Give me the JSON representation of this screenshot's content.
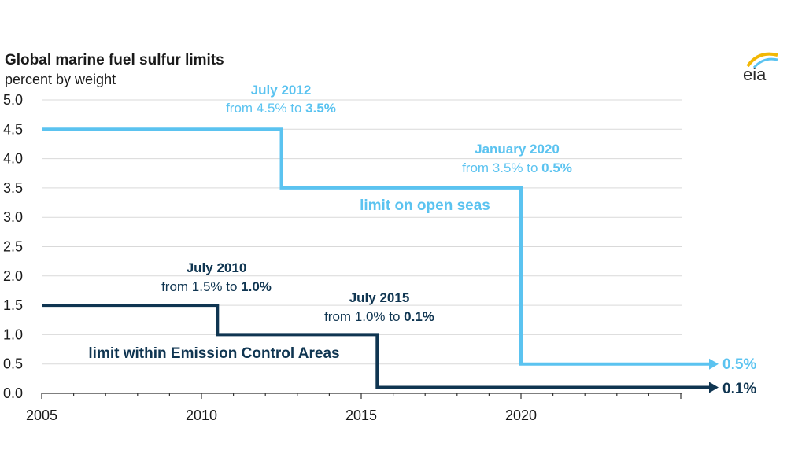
{
  "logo": {
    "text": "eia"
  },
  "colors": {
    "open_seas": "#5bc3f0",
    "eca": "#0f3551",
    "grid": "#d9d9d9",
    "text": "#1a1a1a"
  },
  "chart_data": {
    "type": "line",
    "step": true,
    "title": "Global marine fuel sulfur limits",
    "subtitle": "percent by weight",
    "xlabel": "",
    "ylabel": "percent by weight",
    "xlim": [
      2005,
      2025
    ],
    "ylim": [
      0,
      5.0
    ],
    "x_ticks": [
      2005,
      2010,
      2015,
      2020
    ],
    "x_tick_labels": [
      "2005",
      "2010",
      "2015",
      "2020"
    ],
    "y_ticks": [
      0,
      0.5,
      1.0,
      1.5,
      2.0,
      2.5,
      3.0,
      3.5,
      4.0,
      4.5,
      5.0
    ],
    "y_tick_labels": [
      "0.0",
      "0.5",
      "1.0",
      "1.5",
      "2.0",
      "2.5",
      "3.0",
      "3.5",
      "4.0",
      "4.5",
      "5.0"
    ],
    "grid": true,
    "series": [
      {
        "name": "limit on open seas",
        "label": "limit on open seas",
        "color": "#5bc3f0",
        "x": [
          2005,
          2012.5,
          2012.5,
          2020,
          2020,
          2025
        ],
        "y": [
          4.5,
          4.5,
          3.5,
          3.5,
          0.5,
          0.5
        ],
        "end_label": "0.5%"
      },
      {
        "name": "limit within Emission Control Areas",
        "label": "limit within Emission Control Areas",
        "color": "#0f3551",
        "x": [
          2005,
          2010.5,
          2010.5,
          2015.5,
          2015.5,
          2025
        ],
        "y": [
          1.5,
          1.5,
          1.0,
          1.0,
          0.1,
          0.1
        ],
        "end_label": "0.1%"
      }
    ],
    "annotations": [
      {
        "heading": "July 2012",
        "from_text": "from 4.5% to ",
        "to_value": "3.5%",
        "color": "#5bc3f0"
      },
      {
        "heading": "January 2020",
        "from_text": "from 3.5% to ",
        "to_value": "0.5%",
        "color": "#5bc3f0"
      },
      {
        "heading": "July 2010",
        "from_text": "from 1.5% to ",
        "to_value": "1.0%",
        "color": "#0f3551"
      },
      {
        "heading": "July 2015",
        "from_text": "from 1.0% to ",
        "to_value": "0.1%",
        "color": "#0f3551"
      }
    ]
  }
}
